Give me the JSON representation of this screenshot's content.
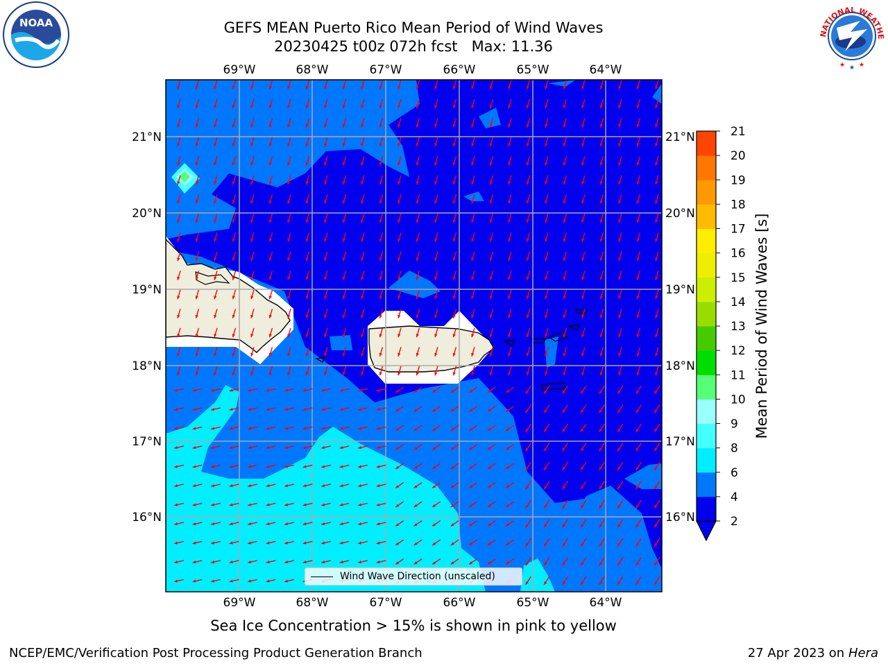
{
  "title": {
    "line1": "GEFS MEAN Puerto Rico Mean Period of Wind Waves",
    "line2": "20230425 t00z 072h fcst   Max: 11.36"
  },
  "logos": {
    "left": {
      "icon": "noaa-logo-icon",
      "text": "NOAA"
    },
    "right": {
      "icon": "nws-logo-icon",
      "text": "NATIONAL WEATHER SERVICE"
    }
  },
  "map": {
    "lon_ticks": [
      "69°W",
      "68°W",
      "67°W",
      "66°W",
      "65°W",
      "64°W"
    ],
    "lat_ticks": [
      "21°N",
      "20°N",
      "19°N",
      "18°N",
      "17°N",
      "16°N"
    ],
    "lon_range": [
      -70.0,
      -63.25
    ],
    "lat_range": [
      15.0,
      21.75
    ],
    "grid": true,
    "arrow_color": "#ff0000",
    "land_color": "#efeedd",
    "legend_label": "Wind Wave Direction (unscaled)"
  },
  "colorbar": {
    "label": "Mean Period of Wind Waves [s]",
    "ticks": [
      "2",
      "4",
      "6",
      "8",
      "9",
      "10",
      "11",
      "12",
      "13",
      "14",
      "15",
      "16",
      "17",
      "18",
      "19",
      "20",
      "21"
    ],
    "colors": [
      "#0000ee",
      "#0077ff",
      "#00eeff",
      "#44ffff",
      "#99ffff",
      "#55ff77",
      "#00dd00",
      "#44cc00",
      "#99dd00",
      "#ccee00",
      "#eeee00",
      "#ffee00",
      "#ffbb00",
      "#ff9900",
      "#ff7700",
      "#ff4400",
      "#ff0000"
    ],
    "extend_min_color": "#0000ee"
  },
  "sea_ice_note": "Sea Ice Concentration > 15% is shown in pink to yellow",
  "footer": {
    "left": "NCEP/EMC/Verification Post Processing Product Generation Branch",
    "right_prefix": "27 Apr 2023 on ",
    "right_host": "Hera"
  }
}
